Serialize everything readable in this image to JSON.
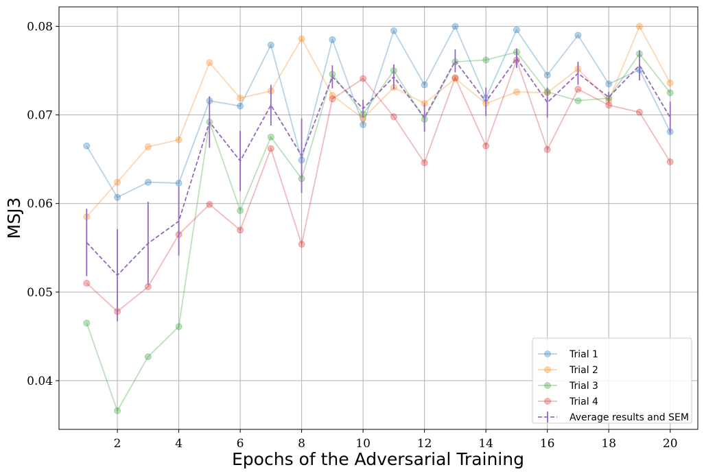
{
  "chart_data": {
    "type": "line",
    "title": "",
    "xlabel": "Epochs of the Adversarial Training",
    "ylabel": "MSJ3",
    "xlim": [
      0.1,
      20.9
    ],
    "ylim": [
      0.0345,
      0.0822
    ],
    "xticks": [
      2,
      4,
      6,
      8,
      10,
      12,
      14,
      16,
      18,
      20
    ],
    "xtick_labels": [
      "2",
      "4",
      "6",
      "8",
      "10",
      "12",
      "14",
      "16",
      "18",
      "20"
    ],
    "yticks": [
      0.04,
      0.05,
      0.06,
      0.07,
      0.08
    ],
    "ytick_labels": [
      "0.04",
      "0.05",
      "0.06",
      "0.07",
      "0.08"
    ],
    "grid": true,
    "legend_position": "bottom-right",
    "x": [
      1,
      2,
      3,
      4,
      5,
      6,
      7,
      8,
      9,
      10,
      11,
      12,
      13,
      14,
      15,
      16,
      17,
      18,
      19,
      20
    ],
    "series": [
      {
        "name": "Trial 1",
        "color": "#1f77b4",
        "values": [
          0.0665,
          0.0607,
          0.0624,
          0.0623,
          0.0716,
          0.071,
          0.0779,
          0.0649,
          0.0785,
          0.0689,
          0.0795,
          0.0734,
          0.08,
          0.0719,
          0.0796,
          0.0745,
          0.079,
          0.0735,
          0.0751,
          0.0681
        ]
      },
      {
        "name": "Trial 2",
        "color": "#ff7f0e",
        "values": [
          0.0585,
          0.0624,
          0.0664,
          0.0672,
          0.0759,
          0.0719,
          0.0727,
          0.0786,
          0.0722,
          0.0696,
          0.0731,
          0.0713,
          0.0741,
          0.0713,
          0.0726,
          0.0725,
          0.0752,
          0.0716,
          0.08,
          0.0736
        ]
      },
      {
        "name": "Trial 3",
        "color": "#2ca02c",
        "values": [
          0.0465,
          0.0366,
          0.0427,
          0.0461,
          0.0692,
          0.0592,
          0.0675,
          0.0628,
          0.0746,
          0.0701,
          0.075,
          0.0695,
          0.076,
          0.0762,
          0.0771,
          0.0726,
          0.0716,
          0.0719,
          0.0769,
          0.0725
        ]
      },
      {
        "name": "Trial 4",
        "color": "#d62728",
        "values": [
          0.051,
          0.0478,
          0.0506,
          0.0565,
          0.0599,
          0.057,
          0.0662,
          0.0554,
          0.0718,
          0.0741,
          0.0698,
          0.0646,
          0.0742,
          0.0665,
          0.0762,
          0.0661,
          0.0729,
          0.0711,
          0.0703,
          0.0647
        ]
      }
    ],
    "average": {
      "name": "Average results and SEM",
      "color": "#9467bd",
      "values": [
        0.0556,
        0.0519,
        0.0555,
        0.058,
        0.0692,
        0.0648,
        0.0711,
        0.0654,
        0.0743,
        0.0707,
        0.0743,
        0.0697,
        0.0761,
        0.0715,
        0.0764,
        0.0714,
        0.0747,
        0.072,
        0.0756,
        0.0697
      ],
      "sem": [
        0.0038,
        0.0052,
        0.0047,
        0.0039,
        0.0029,
        0.0034,
        0.0023,
        0.0042,
        0.0013,
        0.001,
        0.0014,
        0.0016,
        0.0013,
        0.0016,
        0.0011,
        0.0017,
        0.0013,
        0.0006,
        0.0017,
        0.0018
      ]
    }
  }
}
